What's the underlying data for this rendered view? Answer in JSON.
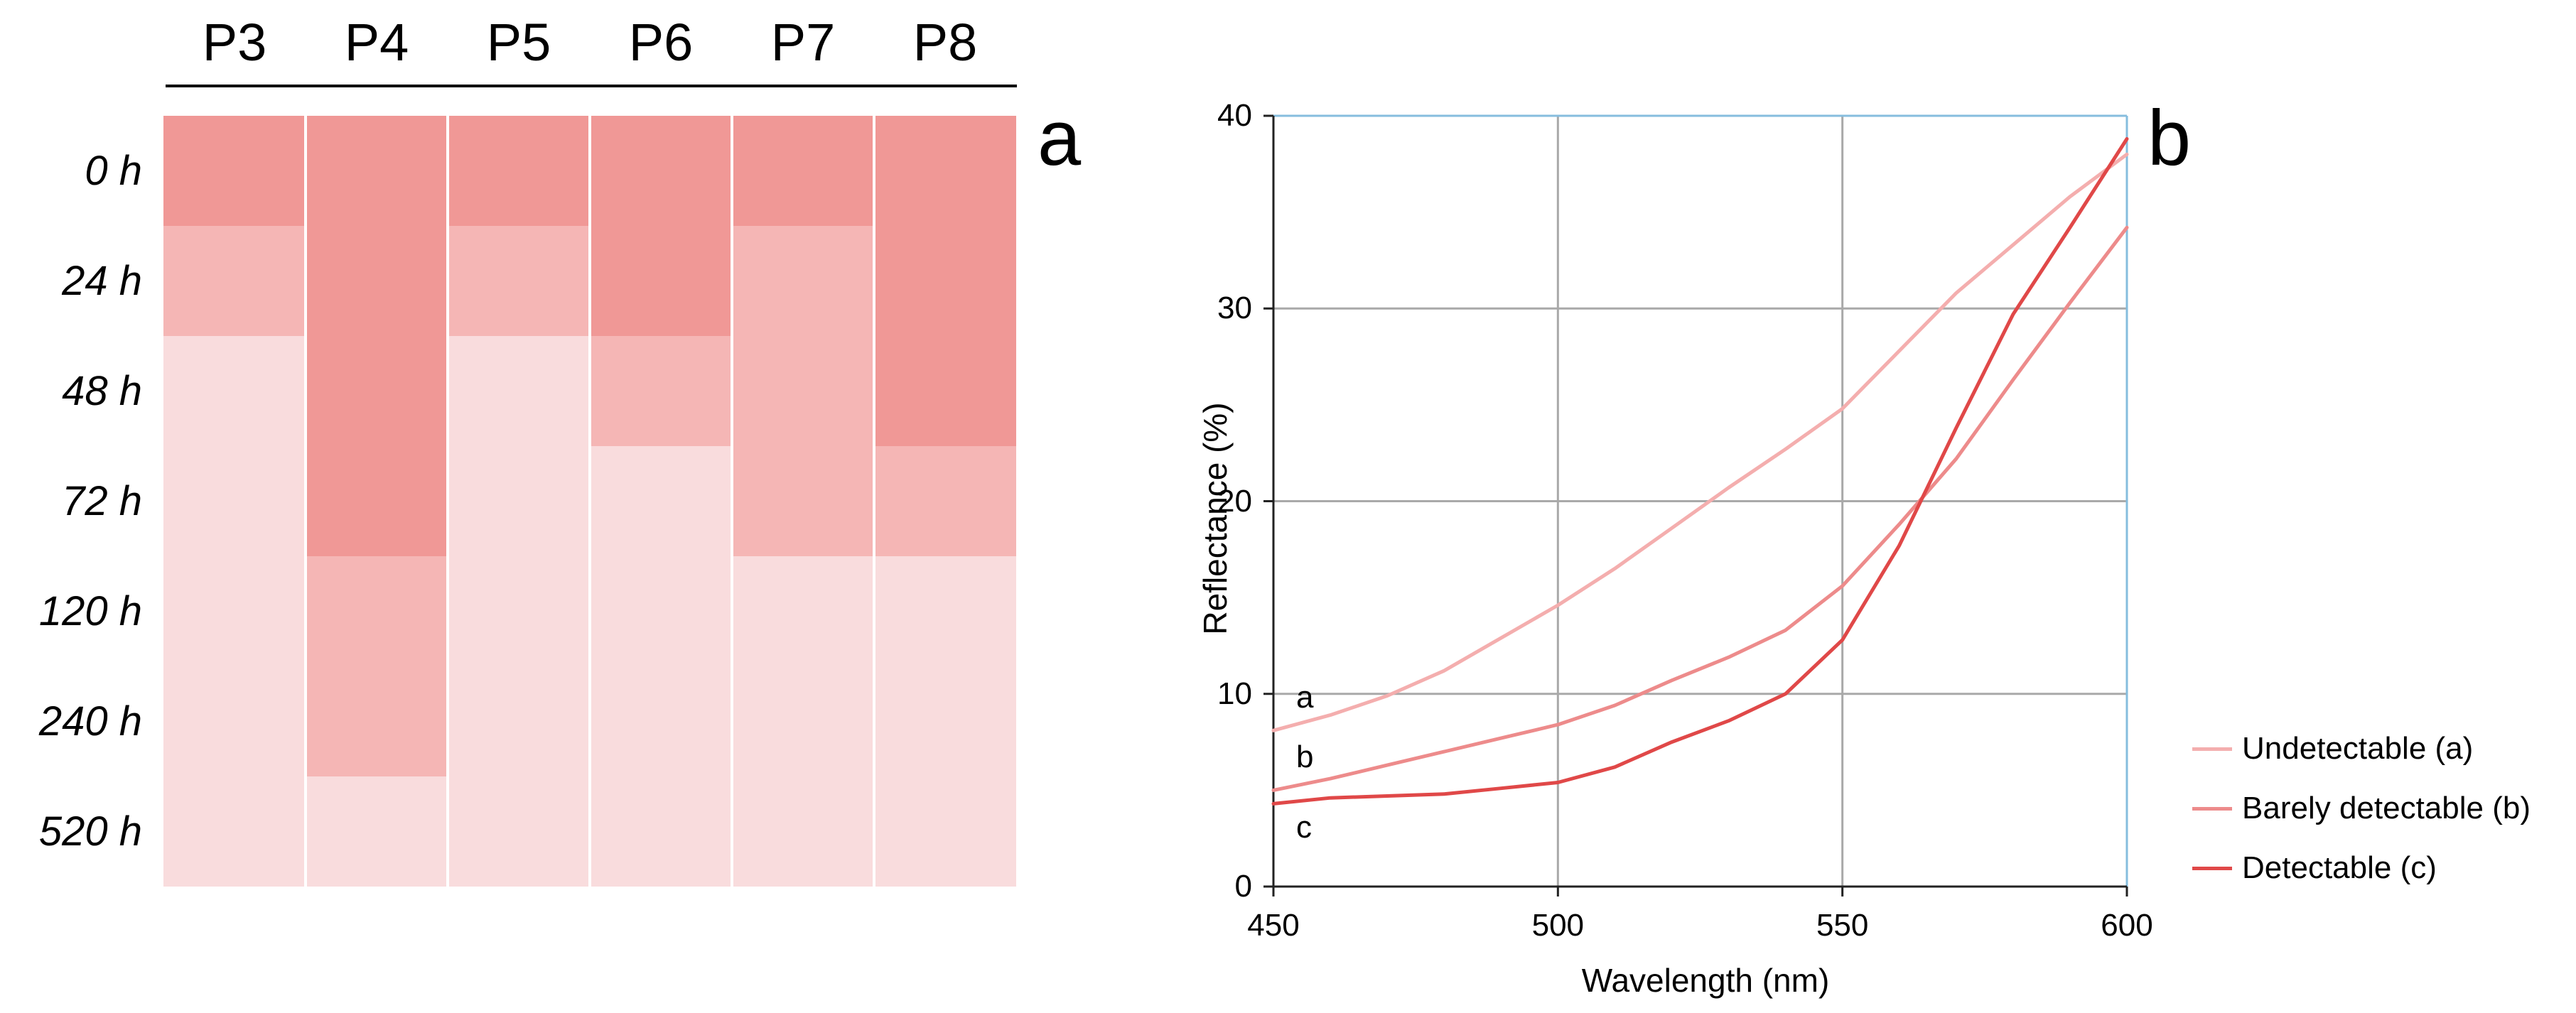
{
  "chart_data": [
    {
      "type": "heatmap",
      "panel_label": "a",
      "columns": [
        "P3",
        "P4",
        "P5",
        "P6",
        "P7",
        "P8"
      ],
      "rows": [
        "0 h",
        "24 h",
        "48 h",
        "72 h",
        "120 h",
        "240 h",
        "520 h"
      ],
      "levels": {
        "3": "#f09896",
        "2": "#f5b6b5",
        "1": "#f9dcdd"
      },
      "cells": [
        [
          3,
          3,
          3,
          3,
          3,
          3
        ],
        [
          2,
          3,
          2,
          3,
          2,
          3
        ],
        [
          1,
          3,
          1,
          2,
          2,
          3
        ],
        [
          1,
          3,
          1,
          1,
          2,
          2
        ],
        [
          1,
          2,
          1,
          1,
          1,
          1
        ],
        [
          1,
          2,
          1,
          1,
          1,
          1
        ],
        [
          1,
          1,
          1,
          1,
          1,
          1
        ]
      ]
    },
    {
      "type": "line",
      "panel_label": "b",
      "xlabel": "Wavelength (nm)",
      "ylabel": "Reflectance (%)",
      "xlim": [
        450,
        600
      ],
      "ylim": [
        0,
        40
      ],
      "xticks": [
        450,
        500,
        550,
        600
      ],
      "yticks": [
        0,
        10,
        20,
        30,
        40
      ],
      "grid": true,
      "legend_position": "right",
      "series": [
        {
          "name": "Undetectable (a)",
          "end_label": "a",
          "color": "#f4aeae",
          "x": [
            450,
            460,
            470,
            480,
            490,
            500,
            510,
            520,
            530,
            540,
            550,
            560,
            570,
            580,
            590,
            600
          ],
          "y": [
            8.1,
            8.9,
            9.9,
            11.2,
            12.9,
            14.6,
            16.5,
            18.6,
            20.7,
            22.7,
            24.8,
            27.8,
            30.8,
            33.3,
            35.8,
            38.0
          ]
        },
        {
          "name": "Barely detectable (b)",
          "end_label": "b",
          "color": "#ed8b8b",
          "x": [
            450,
            460,
            470,
            480,
            490,
            500,
            510,
            520,
            530,
            540,
            550,
            560,
            570,
            580,
            590,
            600
          ],
          "y": [
            5.0,
            5.6,
            6.3,
            7.0,
            7.7,
            8.4,
            9.4,
            10.7,
            11.9,
            13.3,
            15.6,
            18.8,
            22.2,
            26.3,
            30.3,
            34.2
          ]
        },
        {
          "name": "Detectable (c)",
          "end_label": "c",
          "color": "#e04848",
          "x": [
            450,
            460,
            470,
            480,
            490,
            500,
            510,
            520,
            530,
            540,
            550,
            560,
            570,
            580,
            590,
            600
          ],
          "y": [
            4.3,
            4.6,
            4.7,
            4.8,
            5.1,
            5.4,
            6.2,
            7.5,
            8.6,
            10.0,
            12.8,
            17.7,
            23.8,
            29.7,
            34.2,
            38.8
          ]
        }
      ]
    }
  ]
}
